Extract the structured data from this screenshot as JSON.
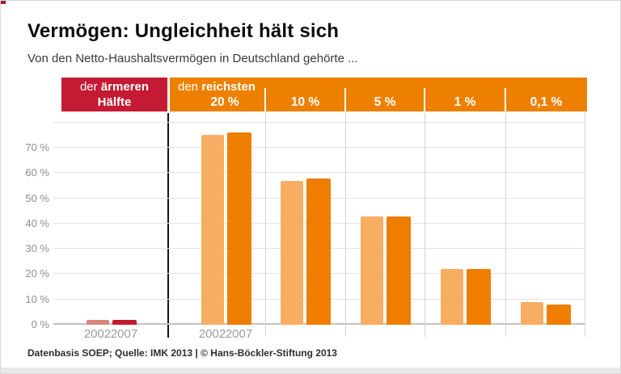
{
  "header": {
    "title": "Vermögen: Ungleichheit hält sich",
    "subtitle": "Von den Netto-Haushaltsvermögen in Deutschland gehörte ..."
  },
  "band": {
    "left": {
      "line1_normal": "der",
      "line1_bold": "ärmeren",
      "line2_bold": "Hälfte",
      "color": "#c41a33"
    },
    "right": {
      "line1_normal": "den",
      "line1_bold": "reichsten",
      "color": "#ee8000",
      "columns": [
        "20 %",
        "10 %",
        "5 %",
        "1 %",
        "0,1 %"
      ]
    }
  },
  "chart_data": {
    "type": "bar",
    "title": "Vermögen: Ungleichheit hält sich",
    "subtitle": "Von den Netto-Haushaltsvermögen in Deutschland gehörte ...",
    "categories": [
      "der ärmeren Hälfte",
      "den reichsten 20 %",
      "10 %",
      "5 %",
      "1 %",
      "0,1 %"
    ],
    "series": [
      {
        "name": "2002",
        "values": [
          2,
          75,
          57,
          43,
          22,
          9
        ]
      },
      {
        "name": "2007",
        "values": [
          2,
          76,
          58,
          43,
          22,
          8
        ]
      }
    ],
    "group_scheme": [
      "red",
      "orange",
      "orange",
      "orange",
      "orange",
      "orange"
    ],
    "ylabel": "",
    "xlabel": "",
    "ylim": [
      0,
      83
    ],
    "grid_values": [
      0,
      10,
      20,
      30,
      40,
      50,
      60,
      70,
      80
    ],
    "ytick_labels": [
      "0 %",
      "10 %",
      "20 %",
      "30 %",
      "40 %",
      "50 %",
      "60 %",
      "70 %"
    ],
    "grid": "on",
    "legend_position": "x-axis-years-under-first-two-groups"
  },
  "colors": {
    "red_2002": "#d9857b",
    "red_2007": "#c01a2c",
    "orange_2002": "#f7ad62",
    "orange_2007": "#ee7d00",
    "band_red": "#c41a33",
    "band_orange": "#ee8000",
    "separator_black": "#161616",
    "gridline": "#e4e4e4",
    "baseline": "#c2c2c2"
  },
  "footer": {
    "source": "Datenbasis SOEP; Quelle: IMK 2013 | © Hans-Böckler-Stiftung 2013"
  }
}
